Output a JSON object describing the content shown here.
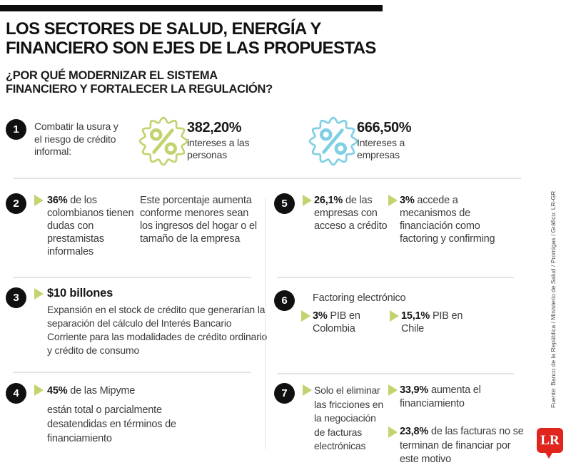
{
  "colors": {
    "green": "#c3d36e",
    "blue": "#7fd0e4",
    "red": "#e0251f"
  },
  "header": {
    "title_line1": "LOS SECTORES DE SALUD, ENERGÍA Y",
    "title_line2": "FINANCIERO SON EJES DE LAS PROPUESTAS",
    "subtitle_line1": "¿POR QUÉ MODERNIZAR EL SISTEMA",
    "subtitle_line2": "FINANCIERO Y FORTALECER LA REGULACIÓN?"
  },
  "item1": {
    "number": "1",
    "text": "Combatir la usura y el riesgo de crédito informal:",
    "badge_persons": {
      "value": "382,20%",
      "label": "intereses a las personas",
      "color": "#c3d36e"
    },
    "badge_companies": {
      "value": "666,50%",
      "label": "Intereses a empresas",
      "color": "#7fd0e4"
    }
  },
  "item2": {
    "number": "2",
    "stat": "36%",
    "text": " de los colombianos tienen dudas con prestamistas informales",
    "note": "Este porcentaje aumenta conforme menores sean los ingresos del hogar o el tamaño de la empresa"
  },
  "item3": {
    "number": "3",
    "stat": "$10 billones",
    "text": "Expansión en el stock de crédito que generarían la separación del cálculo del Interés Bancario Corriente para las modalidades de crédito ordinario y crédito de consumo"
  },
  "item4": {
    "number": "4",
    "stat": "45%",
    "stat_suffix": " de las Mipyme",
    "text": "están total o parcialmente desatendidas en términos de financiamiento"
  },
  "item5": {
    "number": "5",
    "stat1": "26,1%",
    "text1": " de las empresas con acceso a crédito",
    "stat2": "3%",
    "text2": " accede a mecanismos de financiación como factoring y confirming"
  },
  "item6": {
    "number": "6",
    "title": "Factoring electrónico",
    "stat1": "3%",
    "text1": " PIB en Colombia",
    "stat2": "15,1%",
    "text2": " PIB en Chile"
  },
  "item7": {
    "number": "7",
    "text": "Solo el eliminar las fricciones en la negociación de facturas electrónicas",
    "stat1": "33,9%",
    "text1": " aumenta el financiamiento",
    "stat2": "23,8%",
    "text2": " de las facturas no se terminan de financiar por este motivo"
  },
  "source": {
    "credit": "Fuente: Banco de la República / Ministerio de Salud / Promigas / Gráfico: LR-GR",
    "logo_text": "LR"
  }
}
